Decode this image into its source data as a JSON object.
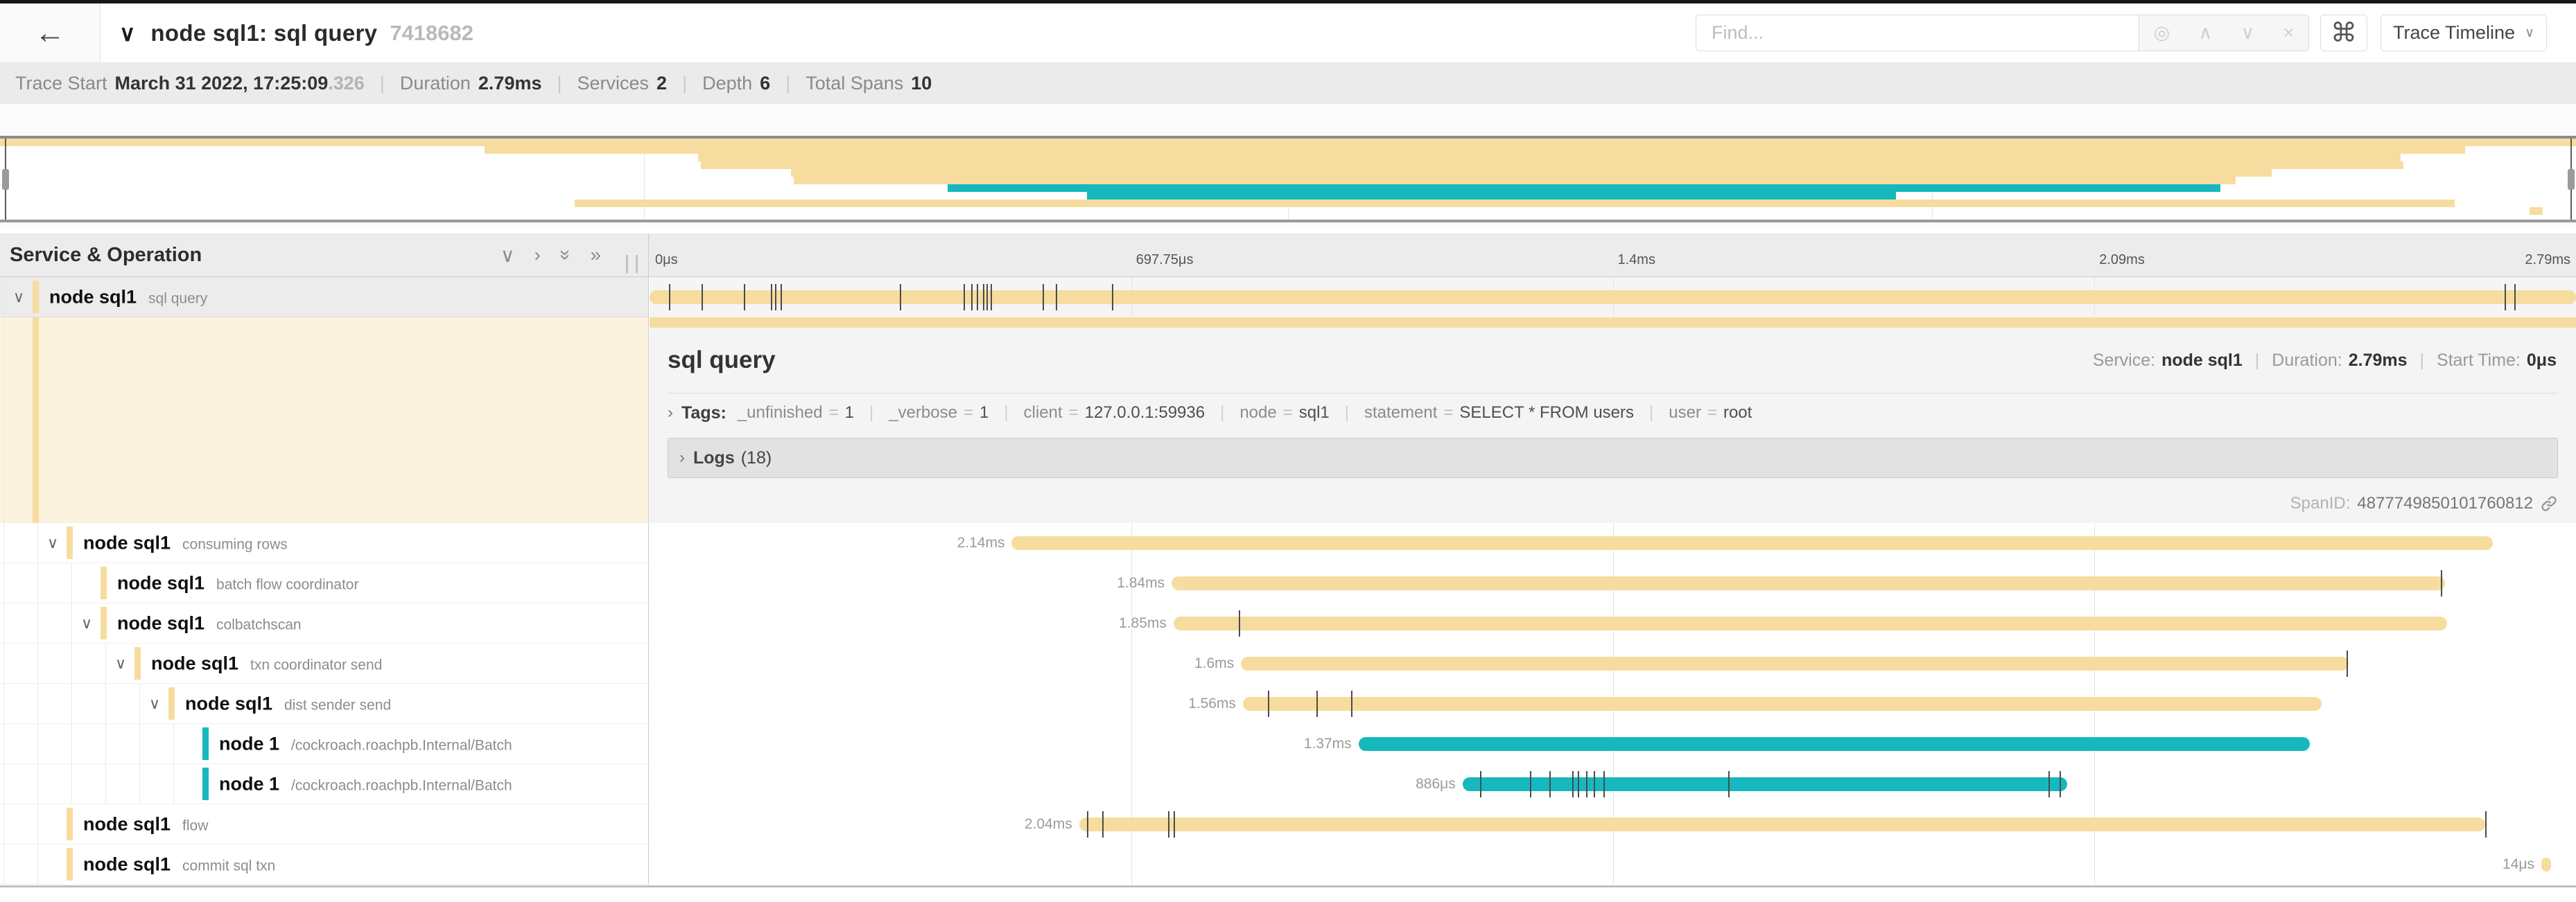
{
  "topbar": {
    "back_icon": "←",
    "title_chevron": "∨",
    "title": "node sql1: sql query",
    "trace_id": "7418682",
    "find_placeholder": "Find...",
    "find_icons": {
      "target": "◎",
      "prev": "∧",
      "next": "∨",
      "clear": "×"
    },
    "shortcut_icon": "⌘",
    "view_selector_label": "Trace Timeline",
    "view_selector_chevron": "∨"
  },
  "trace_info": {
    "trace_start_label": "Trace Start",
    "trace_start_value": "March 31 2022, 17:25:09",
    "trace_start_fraction": ".326",
    "duration_label": "Duration",
    "duration_value": "2.79ms",
    "services_label": "Services",
    "services_value": "2",
    "depth_label": "Depth",
    "depth_value": "6",
    "total_spans_label": "Total Spans",
    "total_spans_value": "10",
    "separator": "|"
  },
  "axis_ticks": [
    "0μs",
    "697.75μs",
    "1.4ms",
    "2.09ms",
    "2.79ms"
  ],
  "left_header": {
    "title": "Service & Operation",
    "collapse_one_icon": "∨",
    "expand_one_icon": "›",
    "collapse_all_icon": "»",
    "expand_all_icon": "»"
  },
  "colors": {
    "tan": "#F6DC9F",
    "teal": "#16B8BE",
    "selected_row_bg": "#ececec",
    "detail_left_bg": "#fcf3df"
  },
  "spans": [
    {
      "service": "node sql1",
      "operation": "sql query",
      "level": 0,
      "has_children": true,
      "color": "tan",
      "start_pct": 0,
      "width_pct": 100,
      "duration_label": "",
      "selected": true,
      "ticks": [
        1.0,
        2.7,
        4.9,
        6.3,
        6.5,
        6.8,
        13.0,
        16.3,
        16.7,
        17.0,
        17.3,
        17.5,
        17.7,
        20.4,
        21.1,
        24.0,
        96.3,
        96.8
      ]
    },
    {
      "service": "node sql1",
      "operation": "consuming rows",
      "level": 1,
      "has_children": true,
      "color": "tan",
      "start_pct": 18.8,
      "width_pct": 76.9,
      "duration_label": "2.14ms",
      "ticks": []
    },
    {
      "service": "node sql1",
      "operation": "batch flow coordinator",
      "level": 2,
      "has_children": false,
      "color": "tan",
      "start_pct": 27.1,
      "width_pct": 66.1,
      "duration_label": "1.84ms",
      "ticks": [
        93.0
      ]
    },
    {
      "service": "node sql1",
      "operation": "colbatchscan",
      "level": 2,
      "has_children": true,
      "color": "tan",
      "start_pct": 27.2,
      "width_pct": 66.1,
      "duration_label": "1.85ms",
      "ticks": [
        30.6
      ]
    },
    {
      "service": "node sql1",
      "operation": "txn coordinator send",
      "level": 3,
      "has_children": true,
      "color": "tan",
      "start_pct": 30.7,
      "width_pct": 57.5,
      "duration_label": "1.6ms",
      "ticks": [
        88.1
      ]
    },
    {
      "service": "node sql1",
      "operation": "dist sender send",
      "level": 4,
      "has_children": true,
      "color": "tan",
      "start_pct": 30.8,
      "width_pct": 56.0,
      "duration_label": "1.56ms",
      "ticks": [
        32.1,
        34.6,
        36.4
      ]
    },
    {
      "service": "node 1",
      "operation": "/cockroach.roachpb.Internal/Batch",
      "level": 5,
      "has_children": false,
      "color": "teal",
      "start_pct": 36.8,
      "width_pct": 49.4,
      "duration_label": "1.37ms",
      "ticks": []
    },
    {
      "service": "node 1",
      "operation": "/cockroach.roachpb.Internal/Batch",
      "level": 5,
      "has_children": false,
      "color": "teal",
      "start_pct": 42.2,
      "width_pct": 31.4,
      "duration_label": "886μs",
      "ticks": [
        43.1,
        45.7,
        46.7,
        47.9,
        48.2,
        48.6,
        49.0,
        49.5,
        56.0,
        72.6,
        73.2
      ]
    },
    {
      "service": "node sql1",
      "operation": "flow",
      "level": 1,
      "has_children": false,
      "color": "tan",
      "start_pct": 22.3,
      "width_pct": 73.0,
      "duration_label": "2.04ms",
      "ticks": [
        22.7,
        23.5,
        26.9,
        27.2,
        95.3
      ]
    },
    {
      "service": "node sql1",
      "operation": "commit sql txn",
      "level": 1,
      "has_children": false,
      "color": "tan",
      "start_pct": 98.2,
      "width_pct": 0.5,
      "duration_label": "14μs",
      "ticks": []
    }
  ],
  "detail": {
    "title": "sql query",
    "service_label": "Service:",
    "service_value": "node sql1",
    "duration_label": "Duration:",
    "duration_value": "2.79ms",
    "start_time_label": "Start Time:",
    "start_time_value": "0μs",
    "accordion_chevron": "›",
    "tags_label": "Tags:",
    "tags": [
      {
        "key": "_unfinished",
        "value": "1"
      },
      {
        "key": "_verbose",
        "value": "1"
      },
      {
        "key": "client",
        "value": "127.0.0.1:59936"
      },
      {
        "key": "node",
        "value": "sql1"
      },
      {
        "key": "statement",
        "value": "SELECT * FROM users"
      },
      {
        "key": "user",
        "value": "root"
      }
    ],
    "logs_label": "Logs",
    "logs_count": "(18)",
    "span_id_label": "SpanID:",
    "span_id_value": "4877749850101760812"
  }
}
